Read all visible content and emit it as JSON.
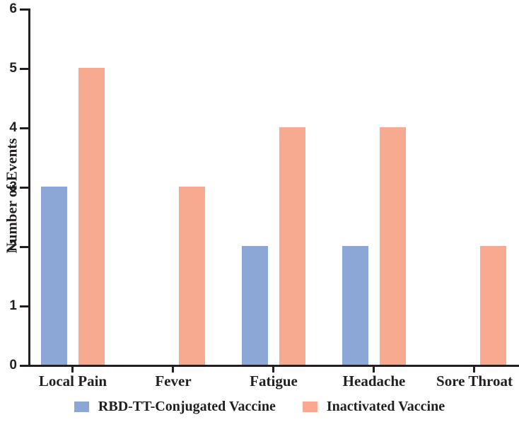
{
  "chart_data": {
    "type": "bar",
    "title": "",
    "categories": [
      "Local Pain",
      "Fever",
      "Fatigue",
      "Headache",
      "Sore Throat"
    ],
    "series": [
      {
        "name": "RBD-TT-Conjugated Vaccine",
        "color": "#8CA6D5",
        "values": [
          3,
          0,
          2,
          2,
          0
        ]
      },
      {
        "name": "Inactivated Vaccine",
        "color": "#F8AA90",
        "values": [
          5,
          3,
          4,
          4,
          2
        ]
      }
    ],
    "xlabel": "",
    "ylabel": "Number of Events",
    "ylim": [
      0,
      6
    ],
    "yticks": [
      0,
      1,
      2,
      3,
      4,
      5,
      6
    ],
    "grid": false,
    "legend_position": "bottom",
    "axis_color": "#231F20",
    "background_color": "#FFFFFF"
  }
}
